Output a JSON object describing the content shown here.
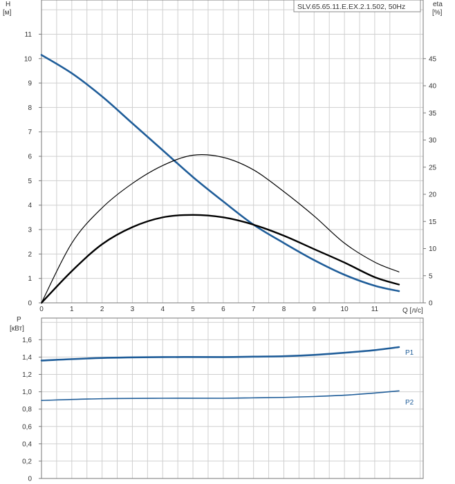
{
  "chart_data": [
    {
      "type": "line",
      "title": "SLV.65.65.11.E.EX.2.1.502, 50Hz",
      "ylabel_left": [
        "H",
        "[м]"
      ],
      "ylabel_right": [
        "eta",
        "[%]"
      ],
      "xlabel": "Q [л/с]",
      "xlim": [
        0,
        12.6
      ],
      "ylim": [
        0,
        12.4
      ],
      "ylim_right": [
        0,
        55.8
      ],
      "x_ticks": [
        "0",
        "1",
        "2",
        "3",
        "4",
        "5",
        "6",
        "7",
        "8",
        "9",
        "10",
        "11"
      ],
      "y_ticks": [
        "0",
        "1",
        "2",
        "3",
        "4",
        "5",
        "6",
        "7",
        "8",
        "9",
        "10",
        "11"
      ],
      "y_ticks_right": [
        "0",
        "5",
        "10",
        "15",
        "20",
        "25",
        "30",
        "35",
        "40",
        "45"
      ],
      "grid": true,
      "series": [
        {
          "id": "head",
          "color": "#1f5d99",
          "axis": "left",
          "x": [
            0,
            1,
            2,
            3,
            4,
            5,
            6,
            7,
            8,
            9,
            10,
            11,
            11.8
          ],
          "y": [
            10.15,
            9.4,
            8.45,
            7.35,
            6.25,
            5.15,
            4.15,
            3.2,
            2.45,
            1.75,
            1.15,
            0.7,
            0.48
          ]
        },
        {
          "id": "eta",
          "color": "#000000",
          "axis": "right",
          "x": [
            0,
            1,
            2,
            3,
            4,
            5,
            6,
            7,
            8,
            9,
            10,
            11,
            11.8
          ],
          "y": [
            0,
            11,
            17.5,
            22,
            25.3,
            27.2,
            26.8,
            24.5,
            20.5,
            16,
            11,
            7.5,
            5.7
          ]
        },
        {
          "id": "npsh",
          "color": "#000000",
          "axis": "left",
          "x": [
            0,
            1,
            2,
            3,
            4,
            5,
            6,
            7,
            8,
            9,
            10,
            11,
            11.8
          ],
          "y": [
            0,
            1.3,
            2.4,
            3.1,
            3.5,
            3.6,
            3.5,
            3.2,
            2.75,
            2.2,
            1.65,
            1.05,
            0.75
          ]
        }
      ]
    },
    {
      "type": "line",
      "ylabel": [
        "P",
        "[кВт]"
      ],
      "xlim": [
        0,
        12.6
      ],
      "ylim": [
        0,
        1.85
      ],
      "y_ticks": [
        "0",
        "0,2",
        "0,4",
        "0,6",
        "0,8",
        "1,0",
        "1,2",
        "1,4",
        "1,6"
      ],
      "grid": true,
      "series": [
        {
          "name": "P1",
          "color": "#1f5d99",
          "x": [
            0,
            2,
            4,
            6,
            7,
            8,
            9,
            10,
            11,
            11.8
          ],
          "y": [
            1.36,
            1.39,
            1.4,
            1.4,
            1.405,
            1.41,
            1.425,
            1.45,
            1.48,
            1.515
          ]
        },
        {
          "name": "P2",
          "color": "#1f5d99",
          "x": [
            0,
            2,
            4,
            6,
            7,
            8,
            9,
            10,
            11,
            11.8
          ],
          "y": [
            0.9,
            0.92,
            0.925,
            0.925,
            0.93,
            0.935,
            0.945,
            0.96,
            0.985,
            1.01
          ]
        }
      ]
    }
  ]
}
